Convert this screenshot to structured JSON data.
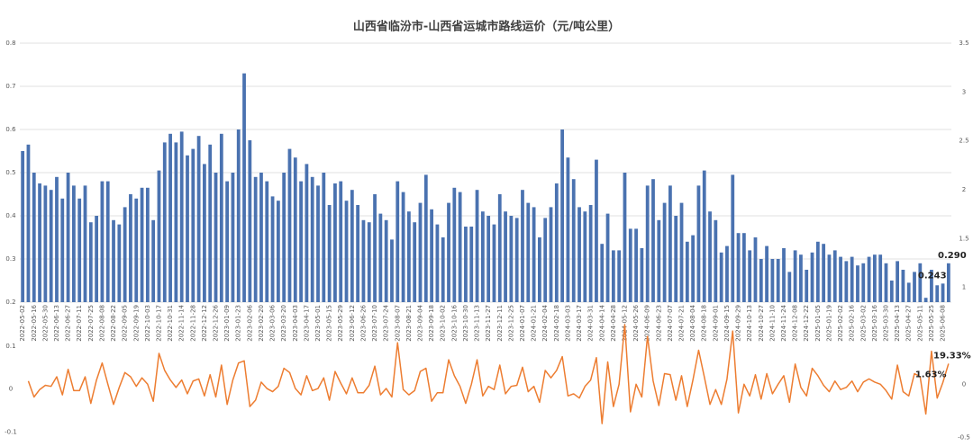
{
  "chart_data": [
    {
      "type": "bar",
      "title": "山西省临汾市-山西省运城市路线运价（元/吨公里）",
      "categories": [
        "2022-05-02",
        null,
        "2022-05-16",
        null,
        "2022-05-30",
        null,
        "2022-06-13",
        null,
        "2022-06-27",
        null,
        "2022-07-11",
        null,
        "2022-07-25",
        null,
        "2022-08-08",
        null,
        "2022-08-22",
        null,
        "2022-09-05",
        null,
        "2022-09-19",
        null,
        "2022-10-03",
        null,
        "2022-10-17",
        null,
        "2022-10-31",
        null,
        "2022-11-14",
        null,
        "2022-11-28",
        null,
        "2022-12-12",
        null,
        "2022-12-26",
        null,
        "2023-01-09",
        null,
        "2023-01-23",
        null,
        "2023-02-06",
        null,
        "2023-02-20",
        null,
        "2023-03-06",
        null,
        "2023-03-20",
        null,
        "2023-04-03",
        null,
        "2023-04-17",
        null,
        "2023-05-01",
        null,
        "2023-05-15",
        null,
        "2023-05-29",
        null,
        "2023-06-12",
        null,
        "2023-06-26",
        null,
        "2023-07-10",
        null,
        "2023-07-24",
        null,
        "2023-08-07",
        null,
        "2023-08-21",
        null,
        "2023-09-04",
        null,
        "2023-09-18",
        null,
        "2023-10-02",
        null,
        "2023-10-16",
        null,
        "2023-10-30",
        null,
        "2023-11-13",
        null,
        "2023-11-27",
        null,
        "2023-12-11",
        null,
        "2023-12-25",
        null,
        "2024-01-07",
        null,
        "2024-01-21",
        null,
        "2024-02-04",
        null,
        "2024-02-18",
        null,
        "2024-03-03",
        null,
        "2024-03-17",
        null,
        "2024-03-31",
        null,
        "2024-04-14",
        null,
        "2024-04-28",
        null,
        "2024-05-12",
        null,
        "2024-05-26",
        null,
        "2024-06-09",
        null,
        "2024-06-23",
        null,
        "2024-07-07",
        null,
        "2024-07-21",
        null,
        "2024-08-04",
        null,
        "2024-08-18",
        null,
        "2024-09-01",
        null,
        "2024-09-15",
        null,
        "2024-09-29",
        null,
        "2024-10-13",
        null,
        "2024-10-27",
        null,
        "2024-11-10",
        null,
        "2024-11-24",
        null,
        "2024-12-08",
        null,
        "2024-12-22",
        null,
        "2025-01-05",
        null,
        "2025-01-19",
        null,
        "2025-02-02",
        null,
        "2025-02-16",
        null,
        "2025-03-02",
        null,
        "2025-03-16",
        null,
        "2025-03-30",
        null,
        "2025-04-13",
        null,
        "2025-04-27",
        null,
        "2025-05-11",
        null,
        "2025-05-25",
        null,
        "2025-06-08",
        null
      ],
      "series": [
        {
          "color": "#4a72b0",
          "values": [
            0.55,
            0.565,
            0.5,
            0.475,
            0.47,
            0.46,
            0.49,
            0.44,
            0.5,
            0.47,
            0.44,
            0.47,
            0.385,
            0.4,
            0.48,
            0.48,
            0.39,
            0.38,
            0.42,
            0.45,
            0.44,
            0.465,
            0.465,
            0.39,
            0.505,
            0.57,
            0.59,
            0.57,
            0.595,
            0.54,
            0.555,
            0.585,
            0.52,
            0.565,
            0.5,
            0.59,
            0.48,
            0.5,
            0.6,
            0.73,
            0.575,
            0.49,
            0.5,
            0.48,
            0.445,
            0.435,
            0.5,
            0.555,
            0.535,
            0.48,
            0.52,
            0.49,
            0.47,
            0.5,
            0.425,
            0.475,
            0.48,
            0.435,
            0.46,
            0.425,
            0.39,
            0.385,
            0.45,
            0.405,
            0.39,
            0.345,
            0.48,
            0.455,
            0.41,
            0.385,
            0.43,
            0.495,
            0.415,
            0.38,
            0.35,
            0.43,
            0.465,
            0.455,
            0.375,
            0.375,
            0.46,
            0.41,
            0.4,
            0.38,
            0.45,
            0.41,
            0.4,
            0.395,
            0.46,
            0.43,
            0.42,
            0.35,
            0.395,
            0.42,
            0.475,
            0.6,
            0.535,
            0.485,
            0.42,
            0.41,
            0.425,
            0.53,
            0.335,
            0.405,
            0.32,
            0.32,
            0.5,
            0.37,
            0.37,
            0.325,
            0.47,
            0.485,
            0.39,
            0.43,
            0.47,
            0.4,
            0.43,
            0.34,
            0.355,
            0.47,
            0.505,
            0.41,
            0.39,
            0.315,
            0.33,
            0.495,
            0.36,
            0.36,
            0.32,
            0.35,
            0.3,
            0.33,
            0.3,
            0.3,
            0.325,
            0.27,
            0.32,
            0.31,
            0.275,
            0.315,
            0.34,
            0.335,
            0.31,
            0.32,
            0.305,
            0.295,
            0.305,
            0.285,
            0.29,
            0.305,
            0.31,
            0.31,
            0.29,
            0.25,
            0.295,
            0.275,
            0.245,
            0.27,
            0.29,
            0.21,
            0.275,
            0.239,
            0.243,
            0.29
          ],
          "value_labels": [
            null,
            null,
            null,
            null,
            null,
            null,
            null,
            null,
            null,
            null,
            null,
            null,
            null,
            null,
            null,
            null,
            null,
            null,
            null,
            null,
            null,
            null,
            null,
            null,
            null,
            null,
            null,
            null,
            null,
            null,
            null,
            null,
            null,
            null,
            null,
            null,
            null,
            null,
            null,
            null,
            null,
            null,
            null,
            null,
            null,
            null,
            null,
            null,
            null,
            null,
            null,
            null,
            null,
            null,
            null,
            null,
            null,
            null,
            null,
            null,
            null,
            null,
            null,
            null,
            null,
            null,
            null,
            null,
            null,
            null,
            null,
            null,
            null,
            null,
            null,
            null,
            null,
            null,
            null,
            null,
            null,
            null,
            null,
            null,
            null,
            null,
            null,
            null,
            null,
            null,
            null,
            null,
            null,
            null,
            null,
            null,
            null,
            null,
            null,
            null,
            null,
            null,
            null,
            null,
            null,
            null,
            null,
            null,
            null,
            null,
            null,
            null,
            null,
            null,
            null,
            null,
            null,
            null,
            null,
            null,
            null,
            null,
            null,
            null,
            null,
            null,
            null,
            null,
            null,
            null,
            null,
            null,
            null,
            null,
            null,
            null,
            null,
            null,
            null,
            null,
            null,
            null,
            null,
            null,
            null,
            null,
            null,
            null,
            null,
            null,
            null,
            null,
            null,
            null,
            null,
            null,
            null,
            null,
            null,
            null,
            null,
            null,
            "0.243",
            "0.290"
          ]
        }
      ],
      "ylim": [
        0.2,
        0.8
      ],
      "yticks": [
        0.2,
        0.3,
        0.4,
        0.5,
        0.6,
        0.7,
        0.8
      ],
      "y2lim": [
        0.85,
        3.5
      ],
      "y2ticks": [
        1,
        1.5,
        2,
        2.5,
        3,
        3.5
      ],
      "grid": true
    },
    {
      "type": "line",
      "series": [
        {
          "color": "#ed7d31",
          "axis": "y2",
          "values": [
            null,
            0.03,
            -0.12,
            -0.05,
            -0.01,
            -0.02,
            0.07,
            -0.1,
            0.14,
            -0.06,
            -0.06,
            0.07,
            -0.18,
            0.04,
            0.2,
            0,
            -0.19,
            -0.03,
            0.11,
            0.07,
            -0.02,
            0.06,
            0,
            -0.16,
            0.29,
            0.13,
            0.04,
            -0.03,
            0.04,
            -0.09,
            0.03,
            0.05,
            -0.11,
            0.09,
            -0.12,
            0.18,
            -0.19,
            0.04,
            0.2,
            0.22,
            -0.21,
            -0.15,
            0.02,
            -0.04,
            -0.07,
            -0.02,
            0.15,
            0.11,
            -0.04,
            -0.1,
            0.08,
            -0.06,
            -0.04,
            0.06,
            -0.15,
            0.12,
            0.01,
            -0.09,
            0.06,
            -0.08,
            -0.08,
            -0.01,
            0.17,
            -0.1,
            -0.04,
            -0.12,
            0.39,
            -0.05,
            -0.1,
            -0.06,
            0.12,
            0.15,
            -0.16,
            -0.08,
            -0.08,
            0.23,
            0.08,
            -0.02,
            -0.18,
            0,
            0.23,
            -0.11,
            -0.02,
            -0.05,
            0.18,
            -0.09,
            -0.02,
            -0.01,
            0.16,
            -0.07,
            -0.02,
            -0.17,
            0.13,
            0.06,
            0.13,
            0.26,
            -0.11,
            -0.09,
            -0.13,
            -0.02,
            0.04,
            0.25,
            -0.37,
            0.21,
            -0.21,
            0,
            0.56,
            -0.26,
            0,
            -0.12,
            0.45,
            0.03,
            -0.2,
            0.1,
            0.09,
            -0.15,
            0.08,
            -0.21,
            0.04,
            0.32,
            0.07,
            -0.19,
            -0.05,
            -0.19,
            0.05,
            0.5,
            -0.27,
            0,
            -0.11,
            0.09,
            -0.14,
            0.1,
            -0.09,
            0,
            0.08,
            -0.17,
            0.19,
            -0.03,
            -0.11,
            0.15,
            0.08,
            -0.01,
            -0.07,
            0.03,
            -0.05,
            -0.03,
            0.03,
            -0.07,
            0.02,
            0.05,
            0.02,
            0,
            -0.06,
            -0.14,
            0.18,
            -0.07,
            -0.11,
            0.1,
            0.07,
            -0.28,
            0.31,
            -0.13,
            0.0163,
            0.1933
          ],
          "value_labels": [
            null,
            null,
            null,
            null,
            null,
            null,
            null,
            null,
            null,
            null,
            null,
            null,
            null,
            null,
            null,
            null,
            null,
            null,
            null,
            null,
            null,
            null,
            null,
            null,
            null,
            null,
            null,
            null,
            null,
            null,
            null,
            null,
            null,
            null,
            null,
            null,
            null,
            null,
            null,
            null,
            null,
            null,
            null,
            null,
            null,
            null,
            null,
            null,
            null,
            null,
            null,
            null,
            null,
            null,
            null,
            null,
            null,
            null,
            null,
            null,
            null,
            null,
            null,
            null,
            null,
            null,
            null,
            null,
            null,
            null,
            null,
            null,
            null,
            null,
            null,
            null,
            null,
            null,
            null,
            null,
            null,
            null,
            null,
            null,
            null,
            null,
            null,
            null,
            null,
            null,
            null,
            null,
            null,
            null,
            null,
            null,
            null,
            null,
            null,
            null,
            null,
            null,
            null,
            null,
            null,
            null,
            null,
            null,
            null,
            null,
            null,
            null,
            null,
            null,
            null,
            null,
            null,
            null,
            null,
            null,
            null,
            null,
            null,
            null,
            null,
            null,
            null,
            null,
            null,
            null,
            null,
            null,
            null,
            null,
            null,
            null,
            null,
            null,
            null,
            null,
            null,
            null,
            null,
            null,
            null,
            null,
            null,
            null,
            null,
            null,
            null,
            null,
            null,
            null,
            null,
            null,
            null,
            null,
            null,
            null,
            null,
            null,
            "1.63%",
            "19.33%"
          ]
        }
      ],
      "ylim": [
        -0.12,
        0.11
      ],
      "yticks": [
        -0.1,
        0,
        0.1
      ],
      "y2lim": [
        -0.53,
        0.4
      ],
      "y2ticks": [
        -0.5,
        0
      ],
      "grid": false
    }
  ]
}
